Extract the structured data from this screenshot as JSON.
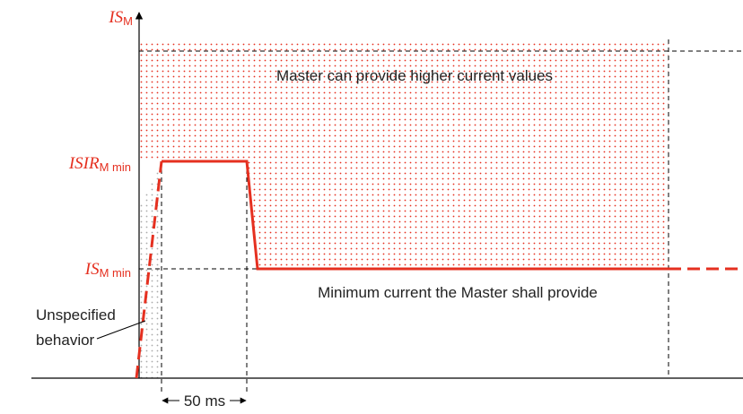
{
  "axis_labels": {
    "is_m": {
      "main": "IS",
      "sub": "M"
    },
    "isir_m_min": {
      "main": "ISIR",
      "sub": "M min"
    },
    "is_m_min": {
      "main": "IS",
      "sub": "M min"
    }
  },
  "annotations": {
    "upper_region": "Master can provide higher current values",
    "minimum_line": "Minimum current the Master shall provide",
    "unspecified": [
      "Unspecified",
      "behavior"
    ],
    "duration": "50 ms"
  }
}
